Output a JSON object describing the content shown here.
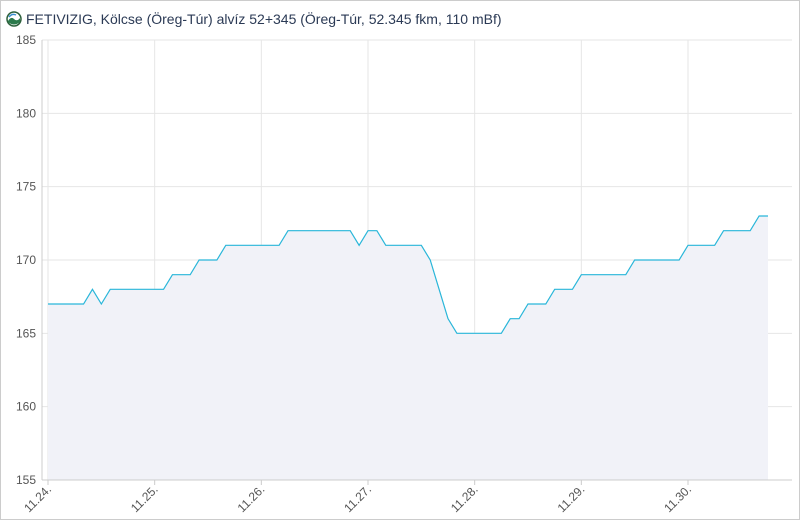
{
  "chart_data": {
    "type": "line",
    "title": "FETIVIZIG, Kölcse (Öreg-Túr) alvíz 52+345 (Öreg-Túr, 52.345 fkm, 110 mBf)",
    "categories": [
      "11.24.",
      null,
      null,
      null,
      null,
      null,
      null,
      null,
      null,
      null,
      null,
      null,
      "11.25.",
      null,
      null,
      null,
      null,
      null,
      null,
      null,
      null,
      null,
      null,
      null,
      "11.26.",
      null,
      null,
      null,
      null,
      null,
      null,
      null,
      null,
      null,
      null,
      null,
      "11.27.",
      null,
      null,
      null,
      null,
      null,
      null,
      null,
      null,
      null,
      null,
      null,
      "11.28.",
      null,
      null,
      null,
      null,
      null,
      null,
      null,
      null,
      null,
      null,
      null,
      "11.29.",
      null,
      null,
      null,
      null,
      null,
      null,
      null,
      null,
      null,
      null,
      null,
      "11.30.",
      null,
      null,
      null,
      null,
      null,
      null,
      null,
      null,
      null
    ],
    "values": [
      167,
      167,
      167,
      167,
      167,
      168,
      167,
      168,
      168,
      168,
      168,
      168,
      168,
      168,
      169,
      169,
      169,
      170,
      170,
      170,
      171,
      171,
      171,
      171,
      171,
      171,
      171,
      172,
      172,
      172,
      172,
      172,
      172,
      172,
      172,
      171,
      172,
      172,
      171,
      171,
      171,
      171,
      171,
      170,
      168,
      166,
      165,
      165,
      165,
      165,
      165,
      165,
      166,
      166,
      167,
      167,
      167,
      168,
      168,
      168,
      169,
      169,
      169,
      169,
      169,
      169,
      170,
      170,
      170,
      170,
      170,
      170,
      171,
      171,
      171,
      171,
      172,
      172,
      172,
      172,
      173,
      173
    ],
    "color": "#29b6d9",
    "ylim": [
      155,
      185
    ],
    "yticks": [
      155,
      160,
      165,
      170,
      175,
      180,
      185
    ],
    "grid": true
  }
}
